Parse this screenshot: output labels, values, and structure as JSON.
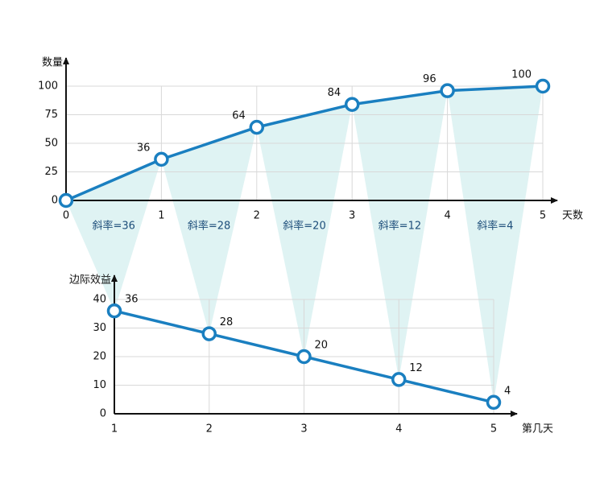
{
  "chart_data": [
    {
      "type": "line",
      "x_label": "天数",
      "y_label": "数量",
      "x": [
        0,
        1,
        2,
        3,
        4,
        5
      ],
      "values": [
        0,
        36,
        64,
        84,
        96,
        100
      ],
      "xlim": [
        0,
        5
      ],
      "xticks": [
        0,
        1,
        2,
        3,
        4,
        5
      ],
      "ylim": [
        0,
        100
      ],
      "yticks": [
        0,
        25,
        50,
        75,
        100
      ],
      "annotations": [
        "斜率=36",
        "斜率=28",
        "斜率=20",
        "斜率=12",
        "斜率=4"
      ],
      "color": "#1a7fc0",
      "grid": true
    },
    {
      "type": "line",
      "x_label": "第几天",
      "y_label": "边际效益",
      "x": [
        1,
        2,
        3,
        4,
        5
      ],
      "values": [
        36,
        28,
        20,
        12,
        4
      ],
      "xlim": [
        1,
        5
      ],
      "xticks": [
        1,
        2,
        3,
        4,
        5
      ],
      "ylim": [
        0,
        40
      ],
      "yticks": [
        0,
        10,
        20,
        30,
        40
      ],
      "color": "#1a7fc0",
      "grid": true
    }
  ]
}
